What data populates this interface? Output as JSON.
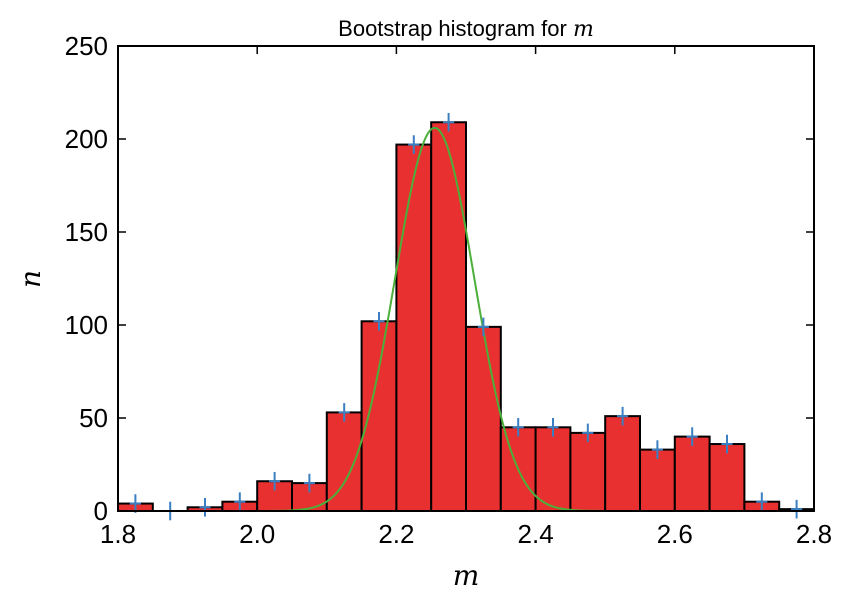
{
  "chart_data": {
    "type": "bar",
    "title": "Bootstrap histogram for",
    "title_math": "m",
    "xlabel": "m",
    "ylabel": "n",
    "xlim": [
      1.8,
      2.8
    ],
    "ylim": [
      0,
      250
    ],
    "xticks": [
      1.8,
      2.0,
      2.2,
      2.4,
      2.6,
      2.8
    ],
    "xtick_labels": [
      "1.8",
      "2.0",
      "2.2",
      "2.4",
      "2.6",
      "2.8"
    ],
    "yticks": [
      0,
      50,
      100,
      150,
      200,
      250
    ],
    "ytick_labels": [
      "0",
      "50",
      "100",
      "150",
      "200",
      "250"
    ],
    "grid": false,
    "bin_width": 0.05,
    "bin_starts": [
      1.8,
      1.85,
      1.9,
      1.95,
      2.0,
      2.05,
      2.1,
      2.15,
      2.2,
      2.25,
      2.3,
      2.35,
      2.4,
      2.45,
      2.5,
      2.55,
      2.6,
      2.65,
      2.7,
      2.75
    ],
    "counts": [
      4,
      0,
      2,
      5,
      16,
      15,
      53,
      102,
      197,
      209,
      99,
      45,
      45,
      42,
      51,
      33,
      40,
      36,
      5,
      1
    ],
    "errorbars": {
      "x": [
        1.825,
        1.875,
        1.925,
        1.975,
        2.025,
        2.075,
        2.125,
        2.175,
        2.225,
        2.275,
        2.325,
        2.375,
        2.425,
        2.475,
        2.525,
        2.575,
        2.625,
        2.675,
        2.725,
        2.775
      ],
      "y": [
        4,
        0,
        2,
        5,
        16,
        15,
        53,
        102,
        197,
        209,
        99,
        45,
        45,
        42,
        51,
        33,
        40,
        36,
        5,
        1
      ],
      "yerr": 5,
      "xerr": 0.008
    },
    "fit_curve": {
      "type": "gaussian",
      "amplitude": 206,
      "mean": 2.255,
      "sigma": 0.057
    },
    "colors": {
      "bars": "#e83030",
      "bar_edge": "#000000",
      "errorbars": "#3a7fc1",
      "fit": "#4caf3a"
    }
  }
}
